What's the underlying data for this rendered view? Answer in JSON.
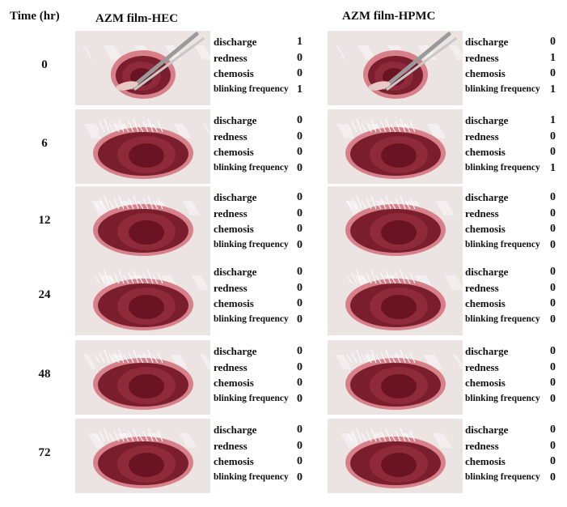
{
  "header": {
    "time_label": "Time (hr)",
    "col_hec": "AZM film-HEC",
    "col_hpmc": "AZM film-HPMC"
  },
  "score_labels": [
    "discharge",
    "redness",
    "chemosis",
    "blinking frequency"
  ],
  "rows": [
    {
      "time": "0",
      "hec": [
        "1",
        "0",
        "0",
        "1"
      ],
      "hpmc": [
        "0",
        "1",
        "0",
        "1"
      ],
      "photo_hec": "eye-with-forceps-photo",
      "photo_hpmc": "eye-with-forceps-photo"
    },
    {
      "time": "6",
      "hec": [
        "0",
        "0",
        "0",
        "0"
      ],
      "hpmc": [
        "1",
        "0",
        "0",
        "1"
      ],
      "photo_hec": "rabbit-eye-photo",
      "photo_hpmc": "rabbit-eye-photo"
    },
    {
      "time": "12",
      "hec": [
        "0",
        "0",
        "0",
        "0"
      ],
      "hpmc": [
        "0",
        "0",
        "0",
        "0"
      ],
      "photo_hec": "rabbit-eye-photo",
      "photo_hpmc": "rabbit-eye-photo"
    },
    {
      "time": "24",
      "hec": [
        "0",
        "0",
        "0",
        "0"
      ],
      "hpmc": [
        "0",
        "0",
        "0",
        "0"
      ],
      "photo_hec": "rabbit-eye-photo",
      "photo_hpmc": "rabbit-eye-photo"
    },
    {
      "time": "48",
      "hec": [
        "0",
        "0",
        "0",
        "0"
      ],
      "hpmc": [
        "0",
        "0",
        "0",
        "0"
      ],
      "photo_hec": "rabbit-eye-photo",
      "photo_hpmc": "rabbit-eye-photo"
    },
    {
      "time": "72",
      "hec": [
        "0",
        "0",
        "0",
        "0"
      ],
      "hpmc": [
        "0",
        "0",
        "0",
        "0"
      ],
      "photo_hec": "rabbit-eye-photo",
      "photo_hpmc": "rabbit-eye-photo"
    }
  ],
  "colors": {
    "fur": "#ece3e3",
    "eyelid": "#d8808a",
    "iris": "#8e2a3a",
    "pupil": "#6a1423",
    "forceps": "#9a9a9a"
  }
}
